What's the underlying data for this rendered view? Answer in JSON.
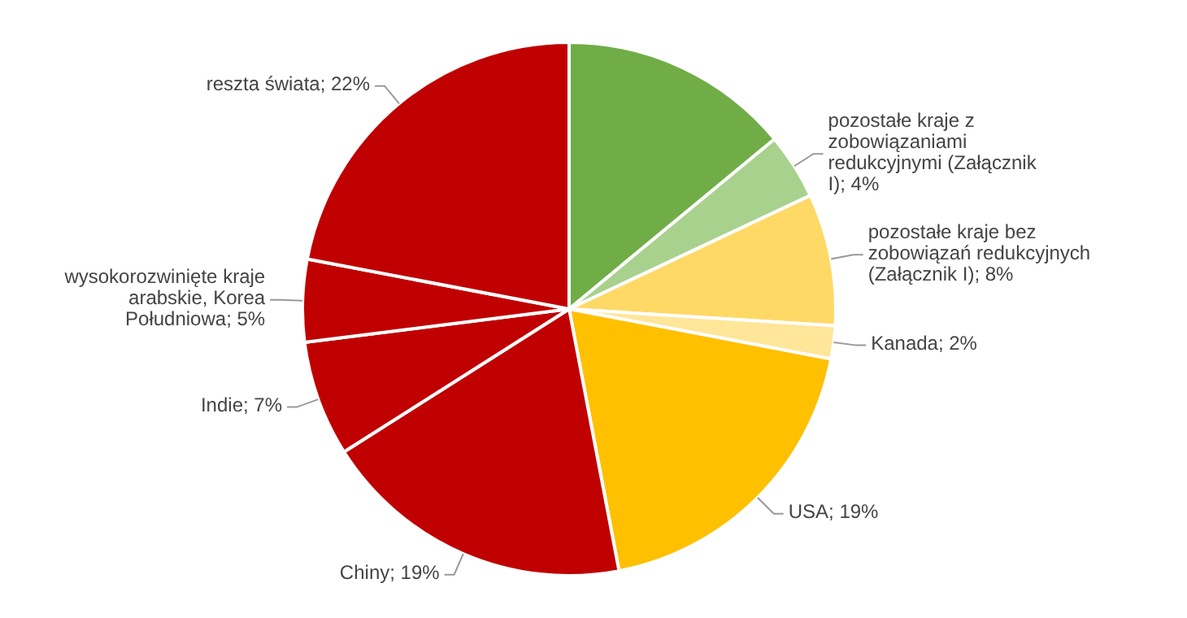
{
  "chart_data": {
    "type": "pie",
    "categories": [
      null,
      "pozostałe kraje z zobowiązaniami redukcyjnymi (Załącznik I)",
      "pozostałe kraje bez zobowiązań redukcyjnych (Załącznik I)",
      "Kanada",
      "USA",
      "Chiny",
      "Indie",
      "wysokorozwinięte kraje arabskie, Korea Południowa",
      "reszta świata"
    ],
    "values": [
      14,
      4,
      8,
      2,
      19,
      19,
      7,
      5,
      22
    ],
    "colors": [
      "#70ad47",
      "#a9d18e",
      "#ffd966",
      "#ffe699",
      "#ffc000",
      "#c00000",
      "#c00000",
      "#c00000",
      "#c00000"
    ],
    "value_labels": [
      null,
      "4%",
      "8%",
      "2%",
      "19%",
      "19%",
      "7%",
      "5%",
      "22%"
    ]
  }
}
